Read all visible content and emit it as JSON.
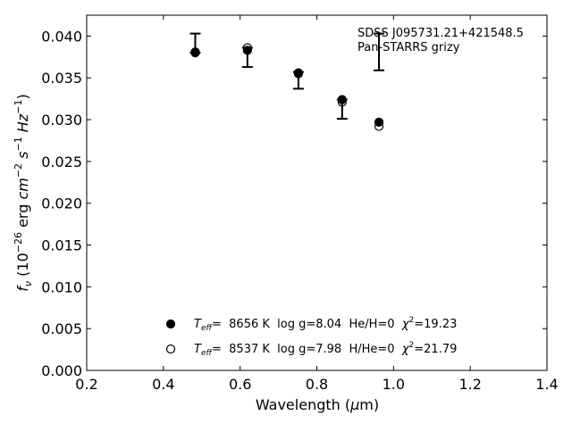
{
  "chart_data": {
    "type": "scatter",
    "xlabel": "Wavelength (μm)",
    "ylabel": "f_ν (10^-26 erg cm^-2 s^-1 Hz^-1)",
    "xlim": [
      0.2,
      1.4
    ],
    "ylim": [
      0.0,
      0.0425
    ],
    "x_ticks": [
      "0.2",
      "0.4",
      "0.6",
      "0.8",
      "1.0",
      "1.2",
      "1.4"
    ],
    "y_ticks": [
      "0.000",
      "0.005",
      "0.010",
      "0.015",
      "0.020",
      "0.025",
      "0.030",
      "0.035",
      "0.040"
    ],
    "grid": false,
    "annotations": [
      "SDSS J095731.21+421548.5",
      "Pan-STARRS grizy"
    ],
    "observed": {
      "x": [
        0.483,
        0.619,
        0.752,
        0.866,
        0.962
      ],
      "y_top": [
        0.0403,
        0.0386,
        0.0357,
        0.0324,
        0.0403
      ],
      "y_bottom": [
        0.038,
        0.0363,
        0.0337,
        0.0301,
        0.0359
      ]
    },
    "series": [
      {
        "name": "T_eff= 8656 K log g=8.04 He/H=0 χ²=19.23",
        "marker": "filled-circle",
        "x": [
          0.483,
          0.619,
          0.752,
          0.866,
          0.962
        ],
        "values": [
          0.0381,
          0.0383,
          0.0356,
          0.0324,
          0.0297
        ]
      },
      {
        "name": "T_eff= 8537 K log g=7.98 H/He=0 χ²=21.79",
        "marker": "open-circle",
        "x": [
          0.483,
          0.619,
          0.752,
          0.866,
          0.962
        ],
        "values": [
          0.038,
          0.0386,
          0.0355,
          0.0321,
          0.0292
        ]
      }
    ],
    "legend": [
      {
        "marker": "filled-circle",
        "teff_symbol": "T",
        "teff_sub": "eff",
        "text": "=  8656 K  log g=8.04  He/H=0  ",
        "chi_symbol": "χ",
        "chi_sup": "2",
        "chi_text": "=19.23"
      },
      {
        "marker": "open-circle",
        "teff_symbol": "T",
        "teff_sub": "eff",
        "text": "=  8537 K  log g=7.98  H/He=0  ",
        "chi_symbol": "χ",
        "chi_sup": "2",
        "chi_text": "=21.79"
      }
    ],
    "legend_placement": "lower-center",
    "colors": {
      "marker": "#000000",
      "background": "#ffffff",
      "axes": "#000000"
    }
  }
}
